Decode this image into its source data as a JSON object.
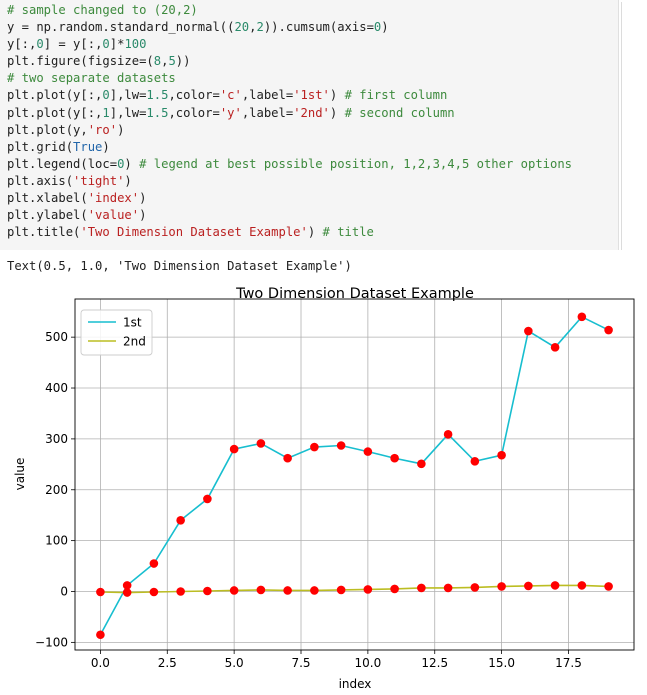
{
  "code_cell": {
    "lines": [
      [
        {
          "t": "# sample changed to (20,2)",
          "c": "c"
        }
      ],
      [
        {
          "t": "y = np.random.standard_normal(("
        },
        {
          "t": "20",
          "c": "n"
        },
        {
          "t": ","
        },
        {
          "t": "2",
          "c": "n"
        },
        {
          "t": ")).cumsum(axis="
        },
        {
          "t": "0",
          "c": "n"
        },
        {
          "t": ")"
        }
      ],
      [
        {
          "t": "y[:,"
        },
        {
          "t": "0",
          "c": "n"
        },
        {
          "t": "] = y[:,"
        },
        {
          "t": "0",
          "c": "n"
        },
        {
          "t": "]*"
        },
        {
          "t": "100",
          "c": "n"
        }
      ],
      [
        {
          "t": "plt.figure(figsize=("
        },
        {
          "t": "8",
          "c": "n"
        },
        {
          "t": ","
        },
        {
          "t": "5",
          "c": "n"
        },
        {
          "t": "))"
        }
      ],
      [
        {
          "t": "# two separate datasets",
          "c": "c"
        }
      ],
      [
        {
          "t": "plt.plot(y[:,"
        },
        {
          "t": "0",
          "c": "n"
        },
        {
          "t": "],lw="
        },
        {
          "t": "1.5",
          "c": "n"
        },
        {
          "t": ",color="
        },
        {
          "t": "'c'",
          "c": "s"
        },
        {
          "t": ",label="
        },
        {
          "t": "'1st'",
          "c": "s"
        },
        {
          "t": ") "
        },
        {
          "t": "# first column",
          "c": "c"
        }
      ],
      [
        {
          "t": "plt.plot(y[:,"
        },
        {
          "t": "1",
          "c": "n"
        },
        {
          "t": "],lw="
        },
        {
          "t": "1.5",
          "c": "n"
        },
        {
          "t": ",color="
        },
        {
          "t": "'y'",
          "c": "s"
        },
        {
          "t": ",label="
        },
        {
          "t": "'2nd'",
          "c": "s"
        },
        {
          "t": ") "
        },
        {
          "t": "# second column",
          "c": "c"
        }
      ],
      [
        {
          "t": "plt.plot(y,"
        },
        {
          "t": "'ro'",
          "c": "s"
        },
        {
          "t": ")"
        }
      ],
      [
        {
          "t": "plt.grid("
        },
        {
          "t": "True",
          "c": "k"
        },
        {
          "t": ")"
        }
      ],
      [
        {
          "t": "plt.legend(loc="
        },
        {
          "t": "0",
          "c": "n"
        },
        {
          "t": ") "
        },
        {
          "t": "# legend at best possible position, 1,2,3,4,5 other options",
          "c": "c"
        }
      ],
      [
        {
          "t": "plt.axis("
        },
        {
          "t": "'tight'",
          "c": "s"
        },
        {
          "t": ")"
        }
      ],
      [
        {
          "t": "plt.xlabel("
        },
        {
          "t": "'index'",
          "c": "s"
        },
        {
          "t": ")"
        }
      ],
      [
        {
          "t": "plt.ylabel("
        },
        {
          "t": "'value'",
          "c": "s"
        },
        {
          "t": ")"
        }
      ],
      [
        {
          "t": "plt.title("
        },
        {
          "t": "'Two Dimension Dataset Example'",
          "c": "s"
        },
        {
          "t": ") "
        },
        {
          "t": "# title",
          "c": "c"
        }
      ]
    ]
  },
  "output_text": "Text(0.5, 1.0, 'Two Dimension Dataset Example')",
  "colors": {
    "series_1st": "#17becf",
    "series_2nd": "#bcbd22",
    "markers": "#ff0000"
  },
  "chart_data": {
    "type": "line",
    "title": "Two Dimension Dataset Example",
    "xlabel": "index",
    "ylabel": "value",
    "x": [
      0,
      1,
      2,
      3,
      4,
      5,
      6,
      7,
      8,
      9,
      10,
      11,
      12,
      13,
      14,
      15,
      16,
      17,
      18,
      19
    ],
    "xlim": [
      -0.95,
      19.95
    ],
    "ylim": [
      -115,
      575
    ],
    "xticks": [
      0,
      2.5,
      5,
      7.5,
      10,
      12.5,
      15,
      17.5
    ],
    "xtick_labels": [
      "0.0",
      "2.5",
      "5.0",
      "7.5",
      "10.0",
      "12.5",
      "15.0",
      "17.5"
    ],
    "yticks": [
      -100,
      0,
      100,
      200,
      300,
      400,
      500
    ],
    "ytick_labels": [
      "−100",
      "0",
      "100",
      "200",
      "300",
      "400",
      "500"
    ],
    "grid": true,
    "legend": "top-left",
    "series": [
      {
        "name": "1st",
        "values": [
          -85,
          12,
          55,
          140,
          182,
          280,
          291,
          262,
          284,
          287,
          275,
          262,
          251,
          309,
          256,
          268,
          512,
          480,
          540,
          514
        ]
      },
      {
        "name": "2nd",
        "values": [
          -1,
          -2,
          -1,
          0,
          1,
          2,
          3,
          2,
          2,
          3,
          4,
          5,
          7,
          7,
          8,
          10,
          11,
          12,
          12,
          10
        ]
      }
    ],
    "markers": "ro"
  }
}
